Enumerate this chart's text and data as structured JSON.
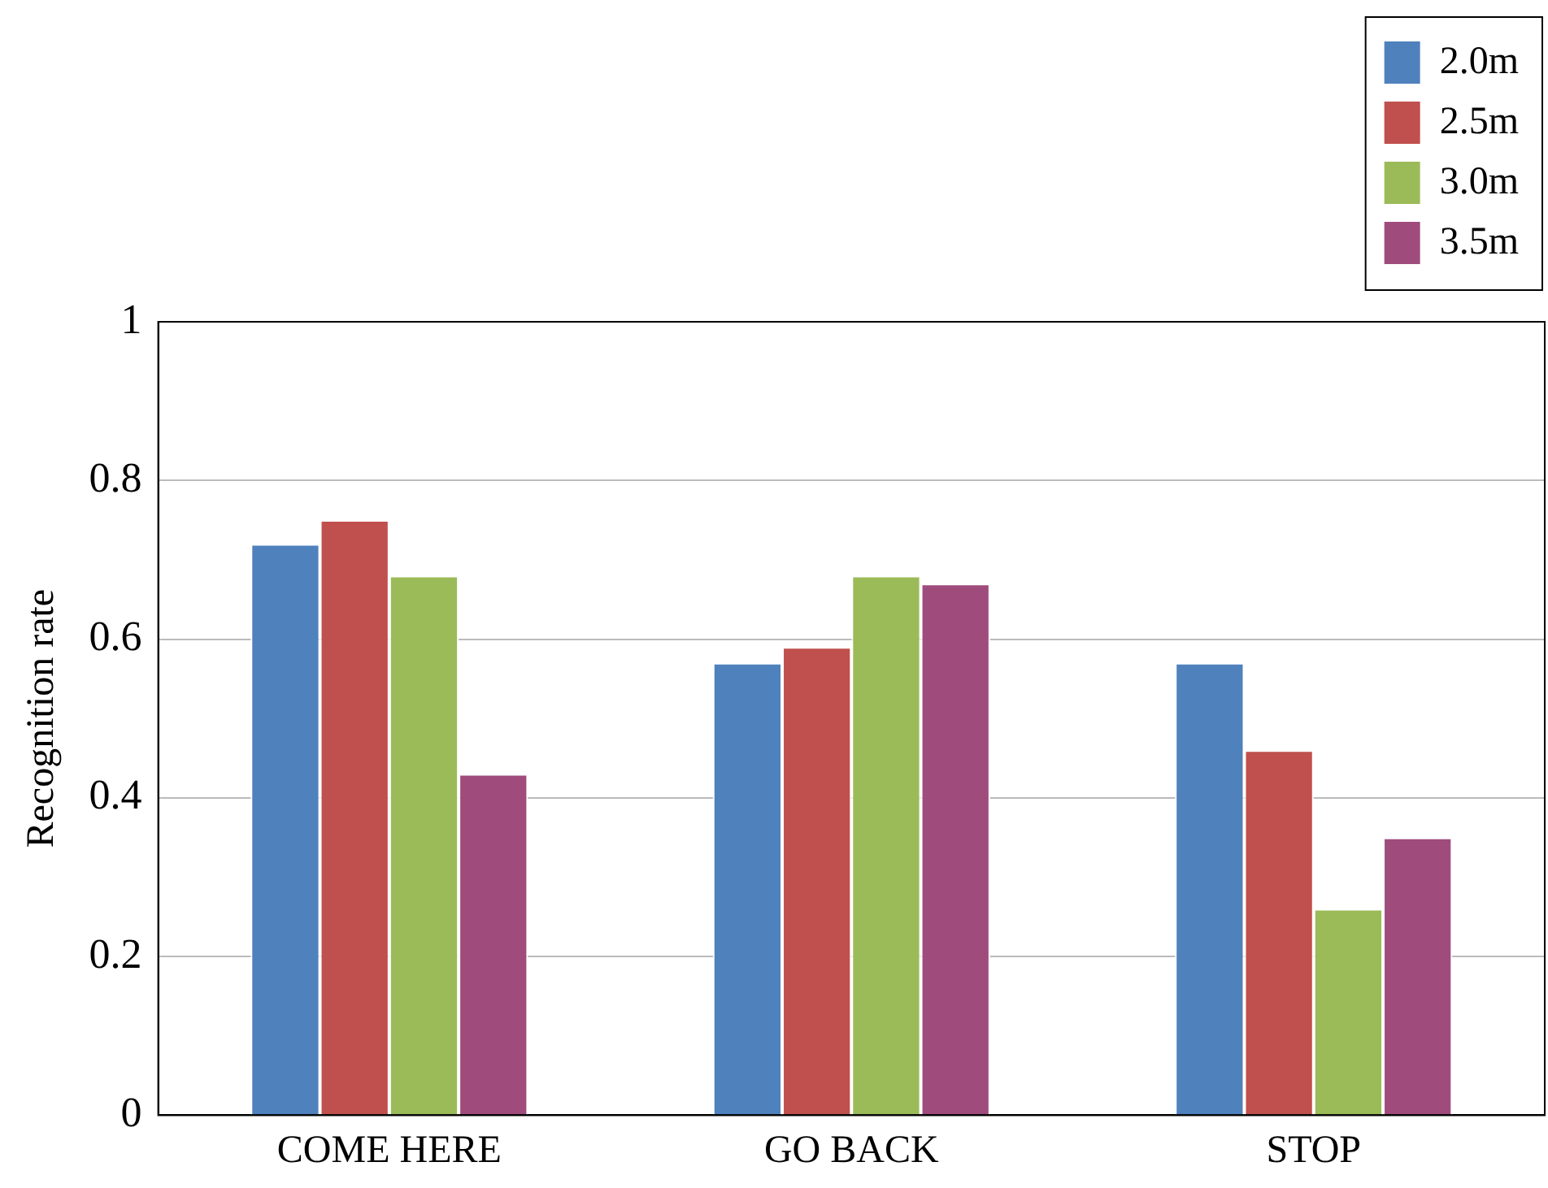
{
  "chart_data": {
    "type": "bar",
    "ylabel": "Recognition rate",
    "categories": [
      "COME HERE",
      "GO BACK",
      "STOP"
    ],
    "series": [
      {
        "name": "2.0m",
        "color": "#4f81bd",
        "values": [
          0.72,
          0.57,
          0.57
        ]
      },
      {
        "name": "2.5m",
        "color": "#c0504d",
        "values": [
          0.75,
          0.59,
          0.46
        ]
      },
      {
        "name": "3.0m",
        "color": "#9bbb59",
        "values": [
          0.68,
          0.68,
          0.26
        ]
      },
      {
        "name": "3.5m",
        "color": "#9f4c7c",
        "values": [
          0.43,
          0.67,
          0.35
        ]
      }
    ],
    "ylim": [
      0,
      1
    ],
    "yticks": [
      0,
      0.2,
      0.4,
      0.6,
      0.8,
      1
    ],
    "grid": "y",
    "legend": "top right"
  }
}
